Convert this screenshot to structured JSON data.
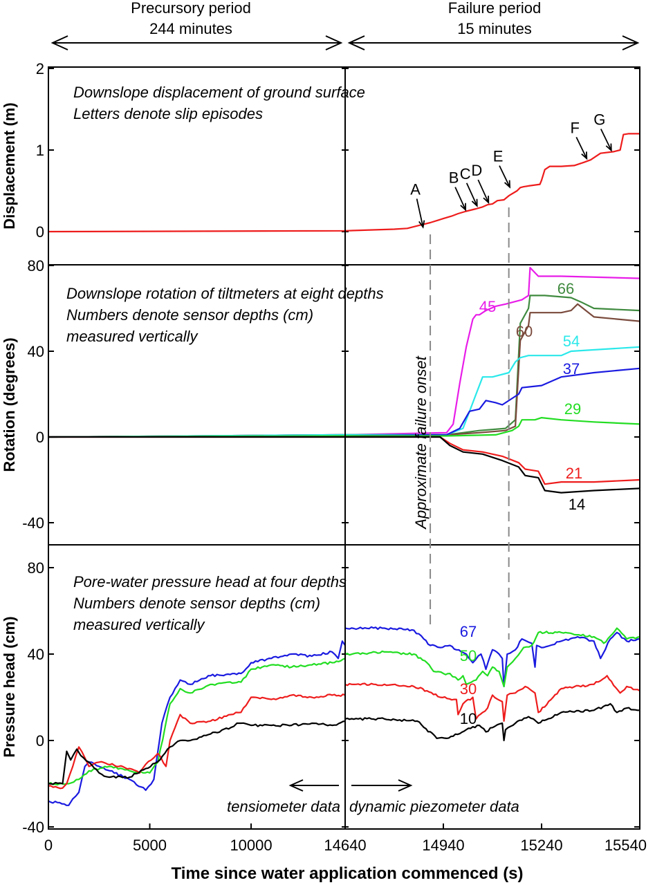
{
  "header": {
    "left": {
      "line1": "Precursory period",
      "line2": "244 minutes"
    },
    "right": {
      "line1": "Failure period",
      "line2": "15 minutes"
    }
  },
  "colors": {
    "black": "#000000",
    "red": "#ee1c1c",
    "magenta": "#e81ce8",
    "darkgreen": "#3f8a3f",
    "brown": "#7a4a3c",
    "cyan": "#2ae8ea",
    "blue": "#1a1ae0",
    "green": "#22dd22",
    "dash": "#888888"
  },
  "chart_data": [
    {
      "type": "line",
      "title": "",
      "ylabel": "Displacement (m)",
      "ylim": [
        0,
        2
      ],
      "yticks": [
        0,
        1,
        2
      ],
      "notes": [
        "Downslope displacement of ground surface",
        "Letters denote slip episodes"
      ],
      "series": [
        {
          "color": "#ee1c1c",
          "x": [
            0,
            14640,
            14790,
            14830,
            14860,
            14900,
            14940,
            14965,
            14985,
            15010,
            15040,
            15058,
            15075,
            15090,
            15105,
            15125,
            15140,
            15165,
            15175,
            15185,
            15200,
            15235,
            15240,
            15250,
            15265,
            15300,
            15340,
            15355,
            15370,
            15390,
            15420,
            15460,
            15480,
            15490,
            15505,
            15540
          ],
          "y": [
            0,
            0.01,
            0.03,
            0.04,
            0.07,
            0.11,
            0.16,
            0.19,
            0.22,
            0.25,
            0.28,
            0.3,
            0.33,
            0.34,
            0.38,
            0.39,
            0.44,
            0.5,
            0.54,
            0.55,
            0.56,
            0.58,
            0.63,
            0.76,
            0.8,
            0.8,
            0.81,
            0.83,
            0.85,
            0.88,
            0.96,
            0.98,
            1.0,
            1.19,
            1.2,
            1.2
          ]
        }
      ],
      "annotations": [
        {
          "text": "A",
          "x": 14880,
          "y": 0.03
        },
        {
          "text": "B",
          "x": 15010,
          "y": 0.24
        },
        {
          "text": "C",
          "x": 15045,
          "y": 0.29
        },
        {
          "text": "D",
          "x": 15080,
          "y": 0.33
        },
        {
          "text": "E",
          "x": 15145,
          "y": 0.52
        },
        {
          "text": "F",
          "x": 15380,
          "y": 0.87
        },
        {
          "text": "G",
          "x": 15455,
          "y": 0.97
        }
      ]
    },
    {
      "type": "line",
      "title": "",
      "ylabel": "Rotation (degrees)",
      "ylim": [
        -50,
        80
      ],
      "yticks": [
        -40,
        0,
        40,
        80
      ],
      "notes": [
        "Downslope rotation of tiltmeters at eight depths",
        "Numbers denote sensor depths (cm)",
        "measured vertically"
      ],
      "vertical_note": "Approximate failure onset",
      "series": [
        {
          "name": "45",
          "color": "#e81ce8",
          "x": [
            0,
            14640,
            14950,
            14970,
            14990,
            15010,
            15030,
            15040,
            15050,
            15070,
            15100,
            15130,
            15180,
            15200,
            15205,
            15230,
            15250,
            15300,
            15540
          ],
          "y": [
            0,
            1,
            2,
            6,
            25,
            42,
            55,
            57,
            57,
            59,
            61,
            62,
            64,
            66,
            79,
            75,
            75,
            75,
            74
          ]
        },
        {
          "name": "66",
          "color": "#3f8a3f",
          "x": [
            0,
            14640,
            14950,
            15000,
            15050,
            15130,
            15160,
            15175,
            15200,
            15205,
            15250,
            15330,
            15360,
            15400,
            15540
          ],
          "y": [
            0,
            1,
            1,
            2,
            3,
            4,
            8,
            53,
            60,
            66,
            66,
            65,
            63,
            60,
            59
          ]
        },
        {
          "name": "60",
          "color": "#7a4a3c",
          "x": [
            0,
            14640,
            14950,
            15050,
            15130,
            15160,
            15175,
            15200,
            15205,
            15300,
            15330,
            15350,
            15400,
            15540
          ],
          "y": [
            0,
            1,
            1,
            2,
            3,
            5,
            45,
            52,
            58,
            58,
            59,
            62,
            56,
            54
          ]
        },
        {
          "name": "54",
          "color": "#2ae8ea",
          "x": [
            0,
            14640,
            14950,
            15000,
            15020,
            15040,
            15060,
            15090,
            15140,
            15160,
            15175,
            15200,
            15300,
            15330,
            15540
          ],
          "y": [
            0,
            1,
            1,
            4,
            12,
            20,
            28,
            28,
            30,
            35,
            37,
            38,
            38,
            40,
            42
          ]
        },
        {
          "name": "37",
          "color": "#1a1ae0",
          "x": [
            0,
            14640,
            14950,
            14990,
            15020,
            15050,
            15070,
            15100,
            15120,
            15170,
            15180,
            15240,
            15300,
            15400,
            15540
          ],
          "y": [
            0,
            0.5,
            1,
            4,
            12,
            13,
            17,
            16,
            15,
            20,
            23,
            24,
            28,
            30,
            32
          ]
        },
        {
          "name": "29",
          "color": "#22dd22",
          "x": [
            0,
            14640,
            14950,
            15100,
            15150,
            15170,
            15180,
            15220,
            15240,
            15300,
            15400,
            15540
          ],
          "y": [
            0,
            0.5,
            0.5,
            1,
            3,
            5,
            8,
            8,
            9,
            8,
            7,
            6
          ]
        },
        {
          "name": "21",
          "color": "#ee1c1c",
          "x": [
            0,
            14640,
            14930,
            14960,
            15000,
            15060,
            15120,
            15170,
            15190,
            15230,
            15250,
            15300,
            15400,
            15540
          ],
          "y": [
            0,
            0,
            0,
            -3,
            -6,
            -7,
            -9,
            -12,
            -15,
            -16,
            -22,
            -21,
            -21,
            -20
          ]
        },
        {
          "name": "14",
          "color": "#000000",
          "x": [
            0,
            14640,
            14930,
            14960,
            15000,
            15060,
            15120,
            15170,
            15190,
            15230,
            15250,
            15300,
            15400,
            15540
          ],
          "y": [
            0,
            0,
            0,
            -4,
            -7,
            -8,
            -11,
            -14,
            -18,
            -19,
            -25,
            -26,
            -25,
            -24
          ]
        }
      ]
    },
    {
      "type": "line",
      "title": "",
      "xlabel": "Time since water application commenced (s)",
      "ylabel": "Pressure head (cm)",
      "ylim": [
        -40,
        90
      ],
      "yticks": [
        -40,
        0,
        40,
        80
      ],
      "xaxis": {
        "segments": [
          {
            "from": 0,
            "to": 14640,
            "ticks": [
              0,
              5000,
              10000,
              14640
            ]
          },
          {
            "from": 14640,
            "to": 15540,
            "ticks": [
              14940,
              15240,
              15540
            ]
          }
        ]
      },
      "notes": [
        "Pore-water pressure head at four depths",
        "Numbers denote sensor depths (cm)",
        "measured vertically"
      ],
      "arrow_labels": {
        "left": "tensiometer data",
        "right": "dynamic piezometer data"
      },
      "series": [
        {
          "name": "67",
          "color": "#1a1ae0",
          "x": [
            0,
            1000,
            1200,
            1500,
            1800,
            2000,
            2500,
            4000,
            4800,
            5200,
            5600,
            6000,
            6500,
            7000,
            8000,
            9500,
            10000,
            11000,
            12000,
            13000,
            14000,
            14300,
            14500,
            14640,
            14640,
            14760,
            14850,
            14880,
            14900,
            14930,
            14960,
            14980,
            15010,
            15030,
            15055,
            15070,
            15090,
            15110,
            15120,
            15125,
            15135,
            15160,
            15180,
            15210,
            15220,
            15225,
            15240,
            15300,
            15350,
            15400,
            15420,
            15450,
            15470,
            15500,
            15540
          ],
          "y": [
            -28,
            -30,
            -27,
            -24,
            -12,
            -10,
            -12,
            -18,
            -23,
            -18,
            8,
            20,
            28,
            26,
            30,
            31,
            36,
            38,
            40,
            39,
            41,
            38,
            46,
            44,
            52,
            52,
            51,
            47,
            44,
            43,
            44,
            42,
            40,
            36,
            40,
            33,
            42,
            40,
            38,
            25,
            40,
            42,
            47,
            45,
            34,
            44,
            43,
            46,
            48,
            46,
            38,
            47,
            50,
            46,
            47
          ]
        },
        {
          "name": "50",
          "color": "#22dd22",
          "x": [
            0,
            1000,
            1500,
            2000,
            3000,
            4000,
            5000,
            5400,
            6000,
            6500,
            7000,
            8000,
            9500,
            10000,
            11000,
            12000,
            13000,
            14000,
            14640,
            14640,
            14760,
            14850,
            14890,
            14910,
            14940,
            14960,
            14985,
            15000,
            15010,
            15040,
            15060,
            15075,
            15090,
            15110,
            15125,
            15135,
            15160,
            15185,
            15210,
            15230,
            15300,
            15400,
            15430,
            15470,
            15500,
            15540
          ],
          "y": [
            -20,
            -20,
            -18,
            -14,
            -12,
            -14,
            -15,
            -10,
            17,
            24,
            22,
            26,
            27,
            33,
            35,
            34,
            35,
            36,
            38,
            40,
            41,
            40,
            36,
            32,
            31,
            31,
            28,
            30,
            26,
            28,
            32,
            30,
            34,
            32,
            25,
            34,
            38,
            43,
            44,
            50,
            50,
            48,
            45,
            52,
            47,
            48
          ]
        },
        {
          "name": "30",
          "color": "#ee1c1c",
          "x": [
            0,
            700,
            900,
            1200,
            1500,
            1800,
            2000,
            2500,
            4000,
            4500,
            4800,
            5200,
            5400,
            5800,
            6000,
            6500,
            7000,
            8000,
            9000,
            9500,
            10000,
            11000,
            12000,
            13000,
            14000,
            14640,
            14640,
            14760,
            14850,
            14890,
            14930,
            14980,
            14985,
            15000,
            15030,
            15040,
            15060,
            15075,
            15090,
            15120,
            15125,
            15135,
            15160,
            15190,
            15220,
            15230,
            15300,
            15400,
            15440,
            15480,
            15500,
            15540
          ],
          "y": [
            -21,
            -22,
            -20,
            -12,
            -3,
            -8,
            -12,
            -10,
            -13,
            -15,
            -11,
            -8,
            -6,
            -12,
            0,
            12,
            8,
            9,
            12,
            13,
            20,
            19,
            21,
            20,
            21,
            21,
            26,
            26,
            25,
            23,
            20,
            19,
            12,
            17,
            20,
            10,
            13,
            15,
            21,
            18,
            9,
            21,
            22,
            25,
            22,
            13,
            24,
            26,
            30,
            22,
            25,
            23
          ]
        },
        {
          "name": "10",
          "color": "#000000",
          "x": [
            0,
            700,
            900,
            1100,
            1400,
            1600,
            2000,
            2500,
            3000,
            4000,
            4800,
            5500,
            6000,
            6500,
            7000,
            8000,
            9000,
            9300,
            9500,
            10000,
            11000,
            12000,
            13000,
            14000,
            14640,
            14640,
            14760,
            14860,
            14920,
            14950,
            14970,
            15010,
            15050,
            15070,
            15090,
            15120,
            15125,
            15130,
            15160,
            15200,
            15230,
            15300,
            15400,
            15450,
            15470,
            15500,
            15540
          ],
          "y": [
            -20,
            -20,
            -5,
            -9,
            -4,
            -7,
            -10,
            -15,
            -17,
            -17,
            -13,
            -9,
            -3,
            0,
            0,
            3,
            6,
            8,
            8,
            7,
            7,
            7,
            8,
            7,
            9,
            10,
            10,
            9,
            1,
            1,
            2,
            5,
            7,
            4,
            6,
            8,
            0,
            5,
            8,
            11,
            8,
            13,
            14,
            17,
            13,
            15,
            14
          ]
        }
      ]
    }
  ]
}
